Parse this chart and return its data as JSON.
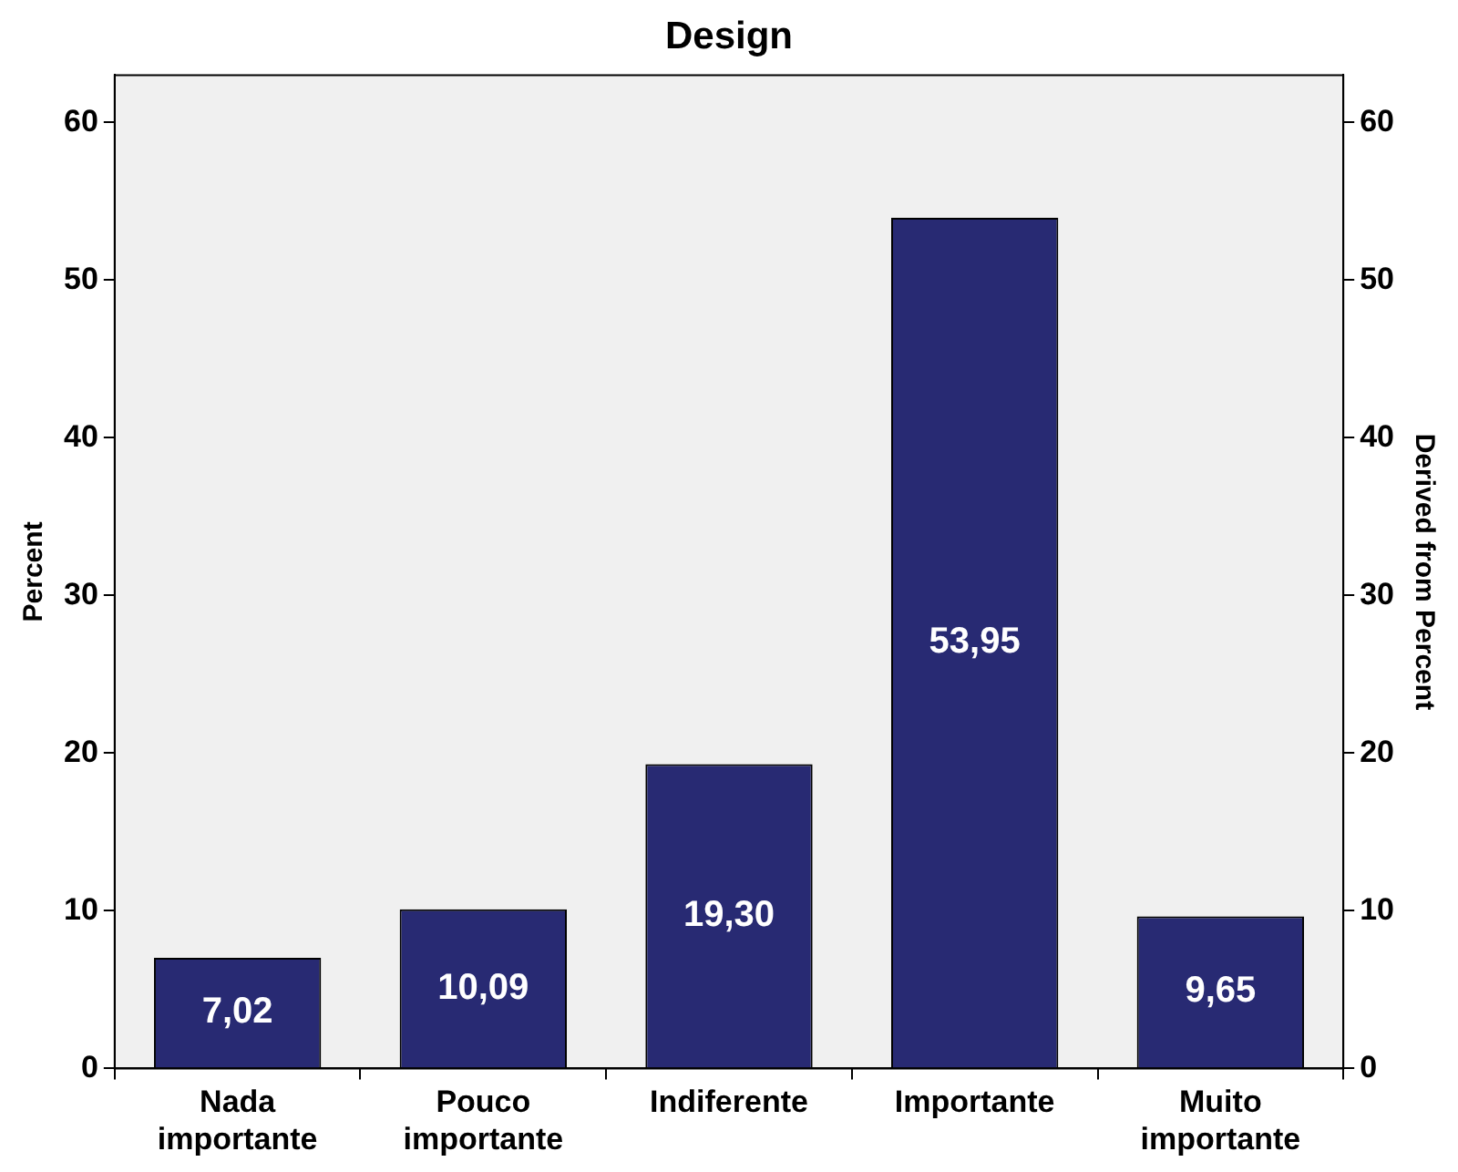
{
  "chart_data": {
    "type": "bar",
    "title": "Design",
    "ylabel": "Percent",
    "y2label": "Derived from Percent",
    "categories": [
      "Nada importante",
      "Pouco importante",
      "Indiferente",
      "Importante",
      "Muito importante"
    ],
    "values": [
      7.02,
      10.09,
      19.3,
      53.95,
      9.65
    ],
    "value_labels": [
      "7,02",
      "10,09",
      "19,30",
      "53,95",
      "9,65"
    ],
    "color": "#282a73",
    "ylim": [
      0,
      63
    ],
    "yticks": [
      0,
      10,
      20,
      30,
      40,
      50,
      60
    ],
    "y2lim": [
      0,
      63
    ],
    "y2ticks": [
      0,
      10,
      20,
      30,
      40,
      50,
      60
    ],
    "grid": false,
    "legend": false
  }
}
